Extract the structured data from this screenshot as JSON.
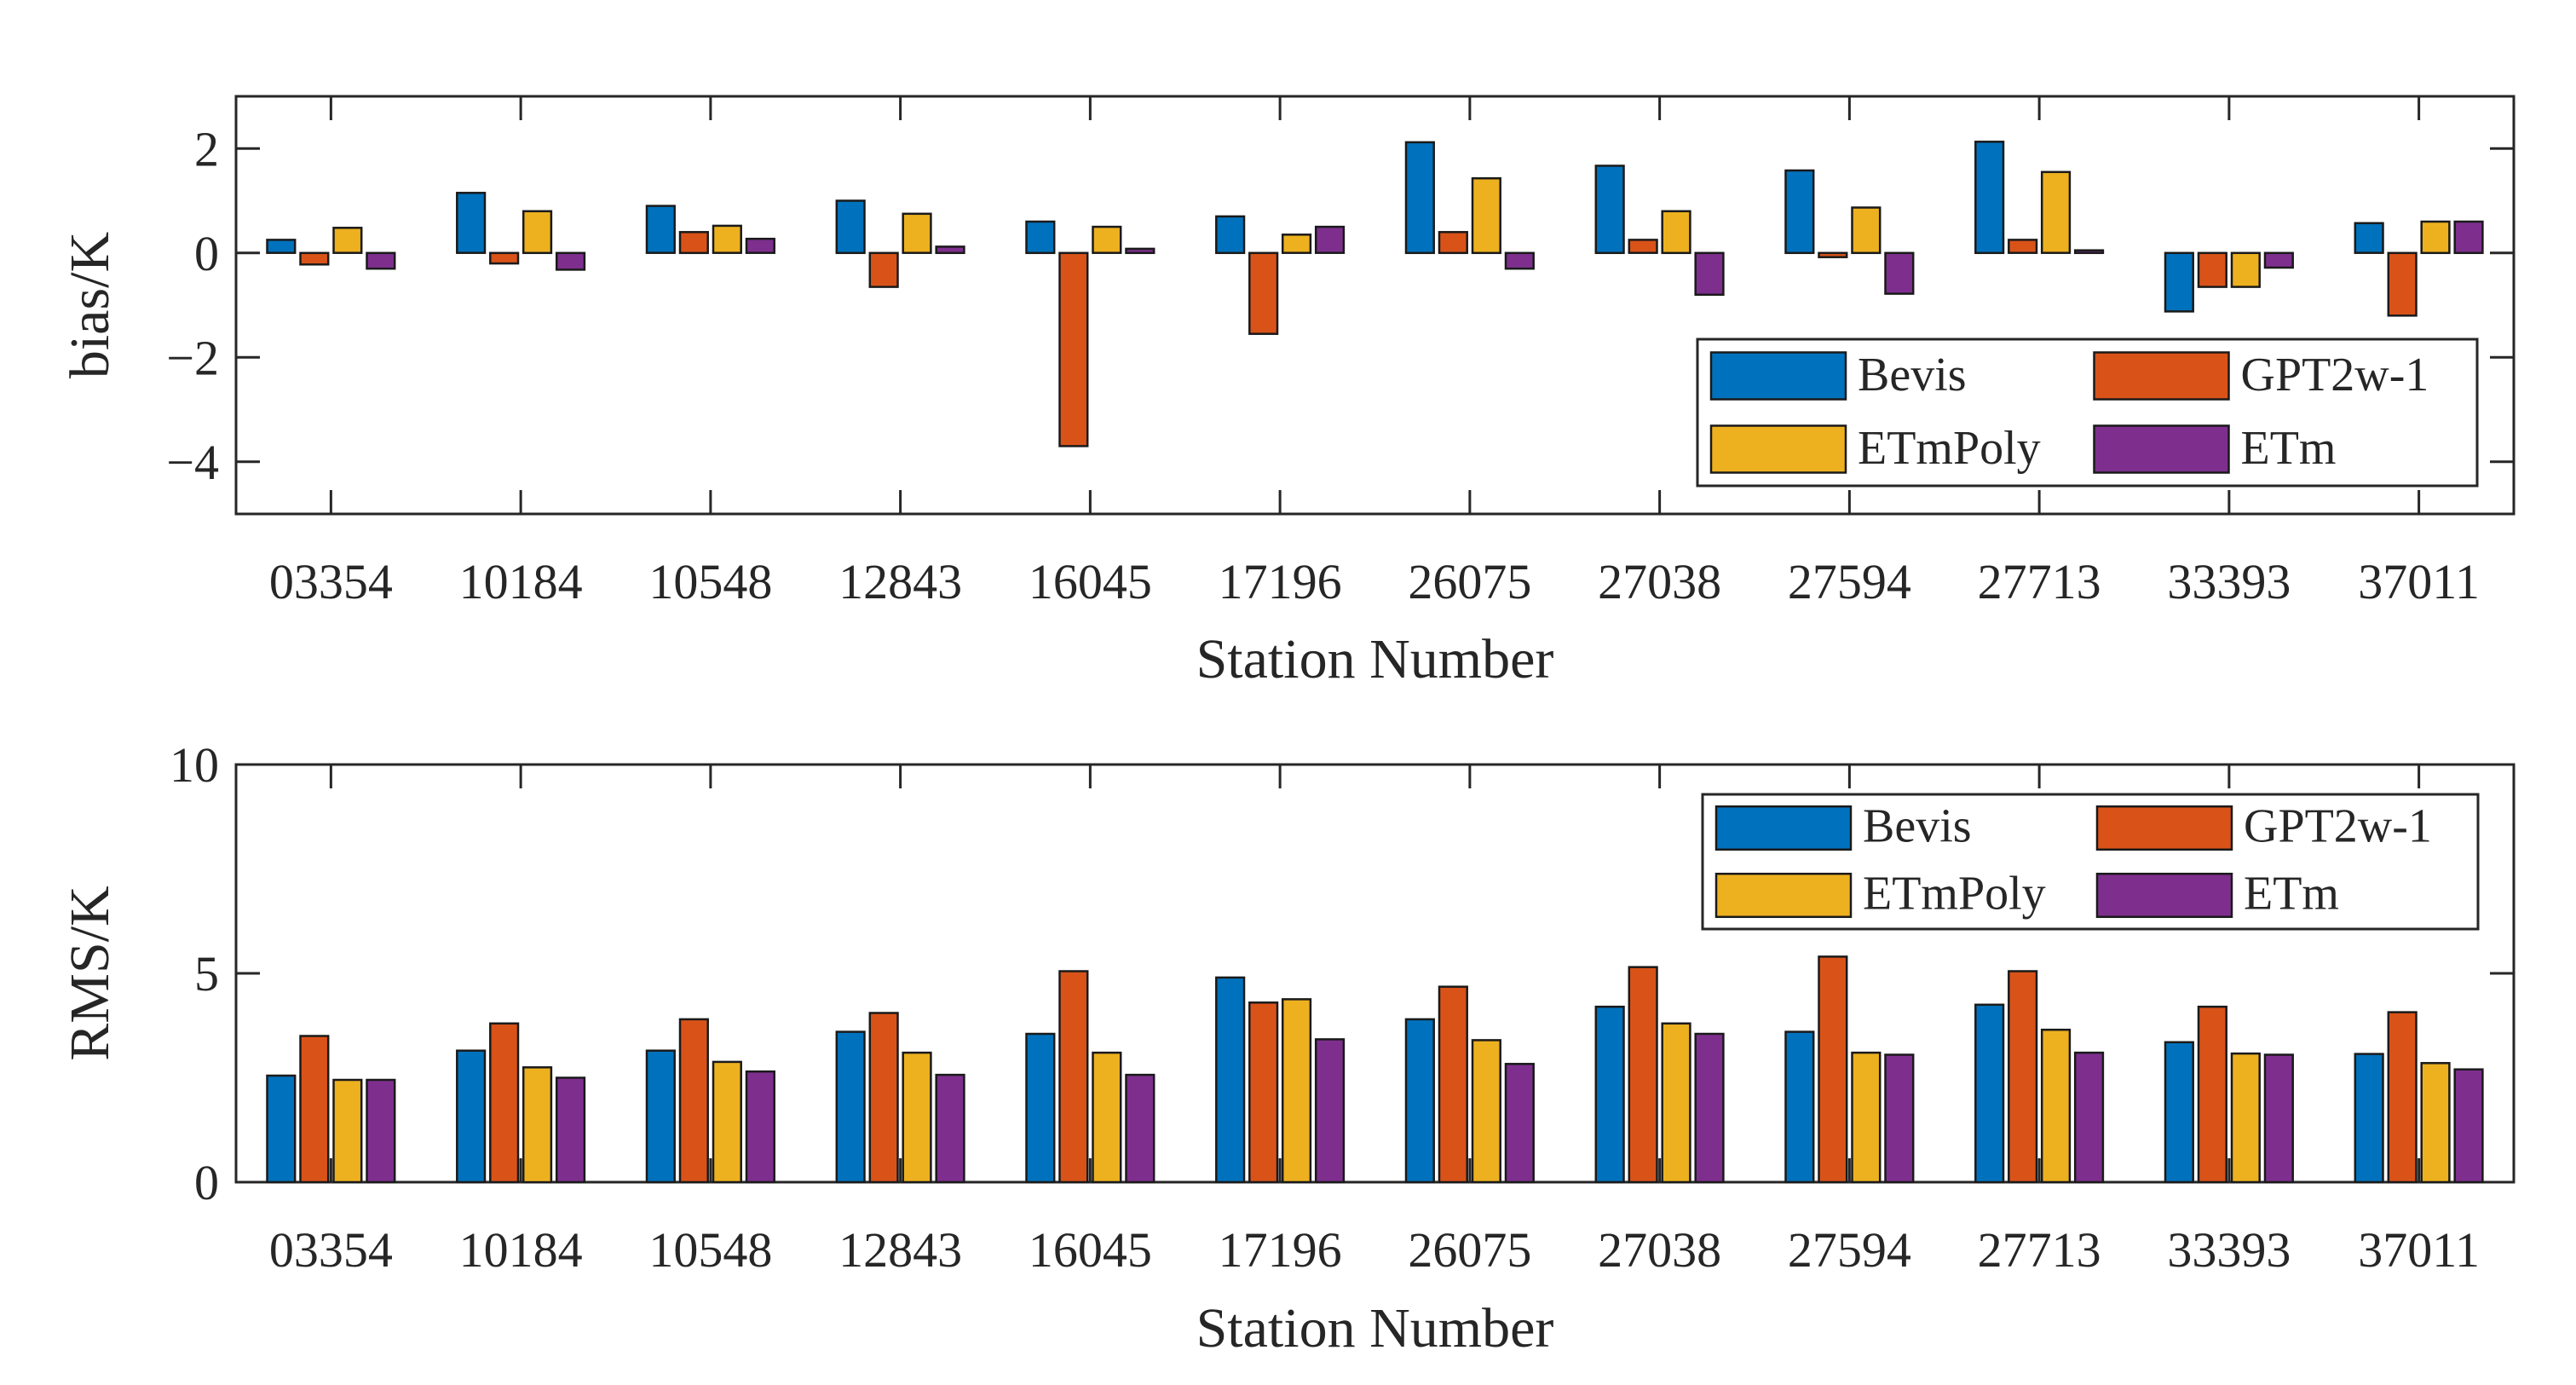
{
  "chart_data": [
    {
      "type": "bar",
      "title": "",
      "xlabel": "Station Number",
      "ylabel": "bias/K",
      "ylim": [
        -5,
        3
      ],
      "yticks": [
        -4,
        -2,
        0,
        2
      ],
      "yticklabels": [
        "−4",
        "−2",
        "0",
        "2"
      ],
      "grid": false,
      "legend_position": "bottom-right",
      "categories": [
        "03354",
        "10184",
        "10548",
        "12843",
        "16045",
        "17196",
        "26075",
        "27038",
        "27594",
        "27713",
        "33393",
        "37011"
      ],
      "series": [
        {
          "name": "Bevis",
          "color": "#0072BD",
          "values": [
            0.25,
            1.15,
            0.9,
            1.0,
            0.6,
            0.7,
            2.12,
            1.67,
            1.58,
            2.13,
            -1.12,
            0.57
          ]
        },
        {
          "name": "GPT2w-1",
          "color": "#D95319",
          "values": [
            -0.22,
            -0.2,
            0.4,
            -0.65,
            -3.7,
            -1.55,
            0.4,
            0.25,
            -0.08,
            0.25,
            -0.65,
            -1.2
          ]
        },
        {
          "name": "ETmPoly",
          "color": "#EDB120",
          "values": [
            0.48,
            0.8,
            0.52,
            0.75,
            0.5,
            0.35,
            1.43,
            0.8,
            0.87,
            1.55,
            -0.65,
            0.6
          ]
        },
        {
          "name": "ETm",
          "color": "#7E2F8E",
          "values": [
            -0.3,
            -0.32,
            0.27,
            0.12,
            0.08,
            0.5,
            -0.3,
            -0.8,
            -0.78,
            0.05,
            -0.28,
            0.6
          ]
        }
      ]
    },
    {
      "type": "bar",
      "title": "",
      "xlabel": "Station Number",
      "ylabel": "RMS/K",
      "ylim": [
        0,
        10
      ],
      "yticks": [
        0,
        5,
        10
      ],
      "yticklabels": [
        "0",
        "5",
        "10"
      ],
      "grid": false,
      "legend_position": "top-right",
      "categories": [
        "03354",
        "10184",
        "10548",
        "12843",
        "16045",
        "17196",
        "26075",
        "27038",
        "27594",
        "27713",
        "33393",
        "37011"
      ],
      "series": [
        {
          "name": "Bevis",
          "color": "#0072BD",
          "values": [
            2.55,
            3.15,
            3.15,
            3.6,
            3.55,
            4.9,
            3.9,
            4.2,
            3.6,
            4.25,
            3.35,
            3.07
          ]
        },
        {
          "name": "GPT2w-1",
          "color": "#D95319",
          "values": [
            3.5,
            3.8,
            3.9,
            4.05,
            5.05,
            4.3,
            4.68,
            5.15,
            5.4,
            5.05,
            4.2,
            4.07
          ]
        },
        {
          "name": "ETmPoly",
          "color": "#EDB120",
          "values": [
            2.45,
            2.75,
            2.88,
            3.1,
            3.1,
            4.38,
            3.4,
            3.8,
            3.1,
            3.65,
            3.08,
            2.85
          ]
        },
        {
          "name": "ETm",
          "color": "#7E2F8E",
          "values": [
            2.45,
            2.5,
            2.65,
            2.57,
            2.57,
            3.42,
            2.83,
            3.55,
            3.05,
            3.1,
            3.05,
            2.7
          ]
        }
      ]
    }
  ]
}
